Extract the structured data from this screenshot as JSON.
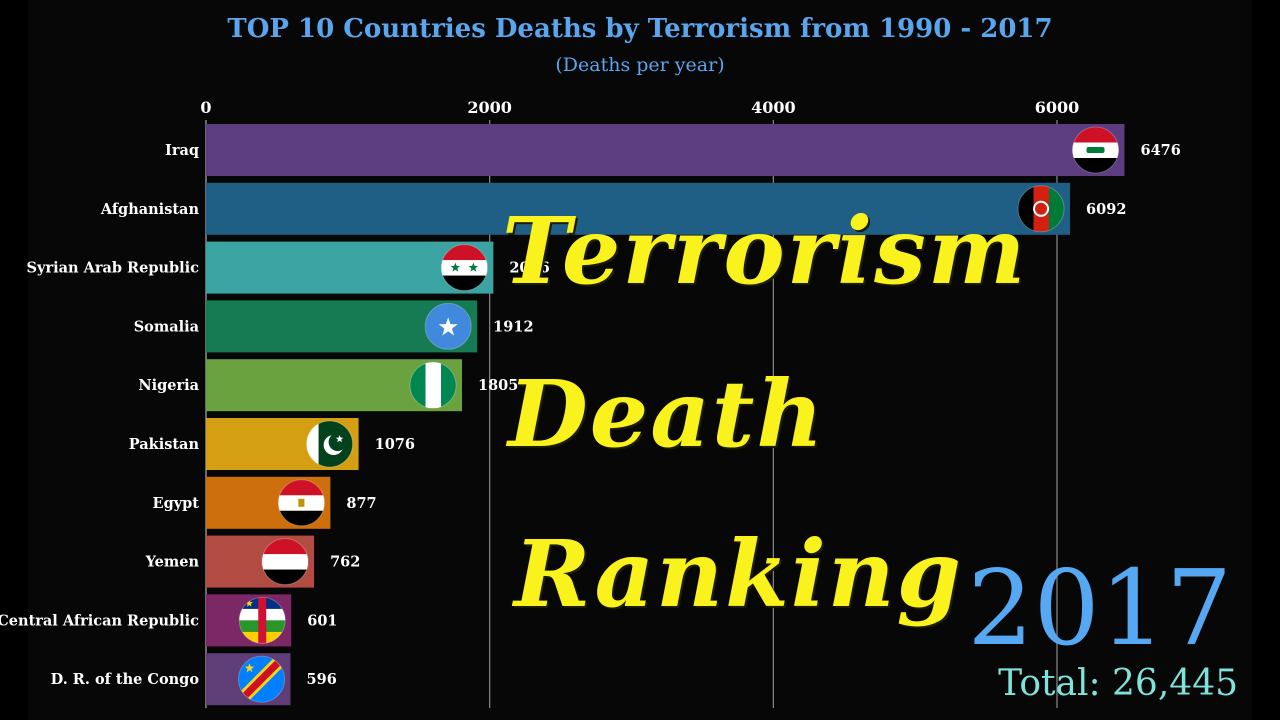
{
  "chart_data": {
    "type": "bar",
    "orientation": "horizontal",
    "title": "TOP 10 Countries Deaths by Terrorism from 1990 - 2017",
    "subtitle": "(Deaths per year)",
    "xlim": [
      0,
      6500
    ],
    "ticks": [
      0,
      2000,
      4000,
      6000
    ],
    "grid": true,
    "categories": [
      "Iraq",
      "Afghanistan",
      "Syrian Arab Republic",
      "Somalia",
      "Nigeria",
      "Pakistan",
      "Egypt",
      "Yemen",
      "Central African Republic",
      "D. R. of the Congo"
    ],
    "values": [
      6476,
      6092,
      2026,
      1912,
      1805,
      1076,
      877,
      762,
      601,
      596
    ],
    "colors": [
      "#5b3d80",
      "#1f5f86",
      "#3ba4a2",
      "#167a52",
      "#6aa240",
      "#d59f13",
      "#cd6f0c",
      "#b24c42",
      "#7d2866",
      "#5f3d76"
    ]
  },
  "overlay_text": {
    "line1": "Terrorism",
    "line2": "Death",
    "line3": "Ranking"
  },
  "year": "2017",
  "total": "Total: 26,445"
}
